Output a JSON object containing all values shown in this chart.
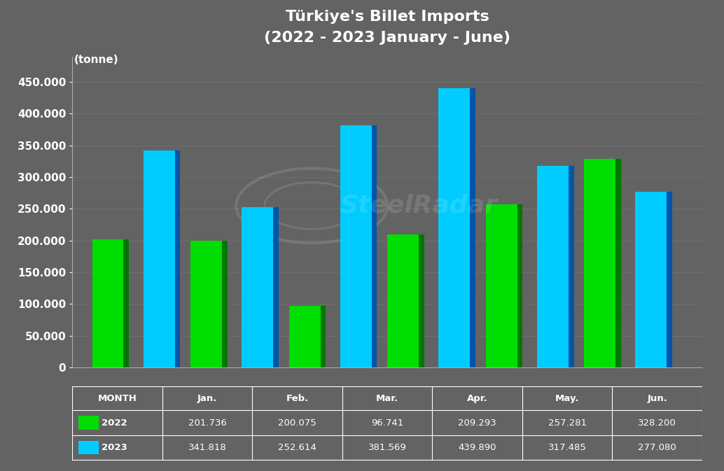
{
  "title_line1": "Türkiye's Billet Imports",
  "title_line2": "(2022 - 2023 January - June)",
  "ylabel": "(tonne)",
  "months": [
    "Jan.",
    "Feb.",
    "Mar.",
    "Apr.",
    "May.",
    "Jun."
  ],
  "values_2022": [
    201736,
    200075,
    96741,
    209293,
    257281,
    328200
  ],
  "values_2023": [
    341818,
    252614,
    381569,
    439890,
    317485,
    277080
  ],
  "color_2022_face": "#00dd00",
  "color_2022_side": "#007700",
  "color_2023_face": "#00ccff",
  "color_2023_side": "#0055aa",
  "background_color": "#636363",
  "text_color": "#ffffff",
  "ylim": [
    0,
    490000
  ],
  "yticks": [
    0,
    50000,
    100000,
    150000,
    200000,
    250000,
    300000,
    350000,
    400000,
    450000
  ],
  "bar_width": 0.32,
  "table_2022": [
    "201.736",
    "200.075",
    "96.741",
    "209.293",
    "257.281",
    "328.200"
  ],
  "table_2023": [
    "341.818",
    "252.614",
    "381.569",
    "439.890",
    "317.485",
    "277.080"
  ]
}
